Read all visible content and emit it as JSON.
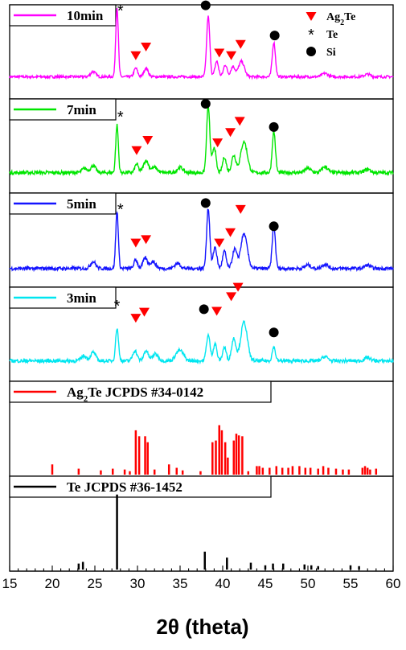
{
  "chart_data": {
    "type": "line",
    "xlabel": "2θ (theta)",
    "xlim": [
      15,
      60
    ],
    "x_ticks": [
      15,
      20,
      25,
      30,
      35,
      40,
      45,
      50,
      55,
      60
    ],
    "phase_legend": [
      {
        "symbol": "triangle",
        "label": "Ag",
        "sub": "2",
        "suffix": "Te",
        "color": "#ff0000"
      },
      {
        "symbol": "star",
        "label": "Te",
        "sub": "",
        "suffix": "",
        "color": "#000000"
      },
      {
        "symbol": "circle",
        "label": "Si",
        "sub": "",
        "suffix": "",
        "color": "#000000"
      }
    ],
    "panels": [
      {
        "kind": "pattern",
        "name": "10min",
        "color": "#ff00ff",
        "baseline": 0.22,
        "noise": 0.015,
        "peaks": [
          [
            24.8,
            0.06,
            0.35
          ],
          [
            27.6,
            0.8,
            0.18
          ],
          [
            29.8,
            0.1,
            0.25
          ],
          [
            31.0,
            0.1,
            0.3
          ],
          [
            38.3,
            0.7,
            0.22
          ],
          [
            39.3,
            0.18,
            0.25
          ],
          [
            40.3,
            0.14,
            0.25
          ],
          [
            41.2,
            0.12,
            0.3
          ],
          [
            42.2,
            0.18,
            0.4
          ],
          [
            46.0,
            0.4,
            0.22
          ],
          [
            52.0,
            0.04,
            0.4
          ],
          [
            57.0,
            0.03,
            0.4
          ]
        ],
        "markers": [
          {
            "type": "star",
            "x": 28.0,
            "y": 1.0
          },
          {
            "type": "triangle",
            "x": 29.8,
            "y": 0.47
          },
          {
            "type": "triangle",
            "x": 31.0,
            "y": 0.57
          },
          {
            "type": "circle",
            "x": 38.0,
            "y": 1.05
          },
          {
            "type": "triangle",
            "x": 39.6,
            "y": 0.5
          },
          {
            "type": "triangle",
            "x": 41.0,
            "y": 0.47
          },
          {
            "type": "triangle",
            "x": 42.1,
            "y": 0.6
          },
          {
            "type": "circle",
            "x": 46.1,
            "y": 0.7
          }
        ]
      },
      {
        "kind": "pattern",
        "name": "7min",
        "color": "#00e600",
        "baseline": 0.2,
        "noise": 0.02,
        "peaks": [
          [
            23.8,
            0.05,
            0.35
          ],
          [
            24.8,
            0.08,
            0.35
          ],
          [
            27.6,
            0.55,
            0.18
          ],
          [
            29.9,
            0.1,
            0.25
          ],
          [
            31.0,
            0.14,
            0.35
          ],
          [
            32.0,
            0.06,
            0.4
          ],
          [
            35.0,
            0.06,
            0.4
          ],
          [
            38.3,
            0.78,
            0.22
          ],
          [
            39.0,
            0.3,
            0.25
          ],
          [
            40.2,
            0.18,
            0.25
          ],
          [
            41.3,
            0.2,
            0.3
          ],
          [
            42.5,
            0.36,
            0.45
          ],
          [
            46.0,
            0.48,
            0.22
          ],
          [
            50.0,
            0.05,
            0.4
          ],
          [
            52.0,
            0.07,
            0.4
          ],
          [
            57.0,
            0.04,
            0.4
          ]
        ],
        "markers": [
          {
            "type": "star",
            "x": 28.0,
            "y": 0.86
          },
          {
            "type": "triangle",
            "x": 29.9,
            "y": 0.46
          },
          {
            "type": "triangle",
            "x": 31.2,
            "y": 0.58
          },
          {
            "type": "circle",
            "x": 38.0,
            "y": 1.0
          },
          {
            "type": "triangle",
            "x": 39.4,
            "y": 0.55
          },
          {
            "type": "triangle",
            "x": 40.9,
            "y": 0.67
          },
          {
            "type": "triangle",
            "x": 42.0,
            "y": 0.8
          },
          {
            "type": "circle",
            "x": 46.0,
            "y": 0.73
          }
        ]
      },
      {
        "kind": "pattern",
        "name": "5min",
        "color": "#1414ff",
        "baseline": 0.18,
        "noise": 0.02,
        "peaks": [
          [
            24.8,
            0.08,
            0.35
          ],
          [
            27.6,
            0.66,
            0.18
          ],
          [
            29.8,
            0.1,
            0.25
          ],
          [
            30.9,
            0.12,
            0.3
          ],
          [
            31.8,
            0.08,
            0.4
          ],
          [
            34.7,
            0.06,
            0.4
          ],
          [
            38.3,
            0.7,
            0.22
          ],
          [
            39.1,
            0.25,
            0.25
          ],
          [
            40.2,
            0.2,
            0.25
          ],
          [
            41.4,
            0.22,
            0.3
          ],
          [
            42.5,
            0.4,
            0.45
          ],
          [
            46.0,
            0.5,
            0.22
          ],
          [
            50.0,
            0.04,
            0.4
          ],
          [
            52.0,
            0.05,
            0.4
          ],
          [
            57.0,
            0.04,
            0.4
          ]
        ],
        "markers": [
          {
            "type": "star",
            "x": 28.0,
            "y": 0.88
          },
          {
            "type": "triangle",
            "x": 29.8,
            "y": 0.48
          },
          {
            "type": "triangle",
            "x": 31.0,
            "y": 0.52
          },
          {
            "type": "circle",
            "x": 38.0,
            "y": 0.94
          },
          {
            "type": "triangle",
            "x": 39.6,
            "y": 0.48
          },
          {
            "type": "triangle",
            "x": 40.9,
            "y": 0.6
          },
          {
            "type": "triangle",
            "x": 42.1,
            "y": 0.87
          },
          {
            "type": "circle",
            "x": 46.0,
            "y": 0.67
          }
        ]
      },
      {
        "kind": "pattern",
        "name": "3min",
        "color": "#00e6f0",
        "baseline": 0.2,
        "noise": 0.02,
        "peaks": [
          [
            23.7,
            0.06,
            0.35
          ],
          [
            24.8,
            0.1,
            0.35
          ],
          [
            27.6,
            0.38,
            0.2
          ],
          [
            29.7,
            0.12,
            0.3
          ],
          [
            31.0,
            0.12,
            0.3
          ],
          [
            32.1,
            0.08,
            0.4
          ],
          [
            34.7,
            0.08,
            0.4
          ],
          [
            35.2,
            0.08,
            0.4
          ],
          [
            38.3,
            0.3,
            0.25
          ],
          [
            39.1,
            0.2,
            0.25
          ],
          [
            40.2,
            0.16,
            0.25
          ],
          [
            41.3,
            0.26,
            0.3
          ],
          [
            42.5,
            0.45,
            0.45
          ],
          [
            46.0,
            0.16,
            0.22
          ],
          [
            52.0,
            0.05,
            0.4
          ],
          [
            57.0,
            0.04,
            0.4
          ]
        ],
        "markers": [
          {
            "type": "star",
            "x": 27.6,
            "y": 0.85
          },
          {
            "type": "triangle",
            "x": 29.8,
            "y": 0.7
          },
          {
            "type": "triangle",
            "x": 30.8,
            "y": 0.77
          },
          {
            "type": "circle",
            "x": 37.8,
            "y": 0.8
          },
          {
            "type": "triangle",
            "x": 39.3,
            "y": 0.78
          },
          {
            "type": "triangle",
            "x": 41.0,
            "y": 0.95
          },
          {
            "type": "triangle",
            "x": 41.8,
            "y": 1.06
          },
          {
            "type": "circle",
            "x": 46.0,
            "y": 0.53
          }
        ]
      },
      {
        "kind": "reference",
        "name": "Ag",
        "name_sub": "2",
        "name_suffix": "Te JCPDS #34-0142",
        "color": "#ff0000",
        "lines": [
          [
            20.0,
            0.12
          ],
          [
            23.1,
            0.07
          ],
          [
            25.7,
            0.05
          ],
          [
            27.1,
            0.07
          ],
          [
            28.5,
            0.06
          ],
          [
            29.1,
            0.04
          ],
          [
            29.8,
            0.52
          ],
          [
            30.2,
            0.45
          ],
          [
            30.9,
            0.45
          ],
          [
            31.2,
            0.38
          ],
          [
            32.0,
            0.06
          ],
          [
            33.7,
            0.12
          ],
          [
            34.6,
            0.08
          ],
          [
            35.3,
            0.05
          ],
          [
            37.4,
            0.04
          ],
          [
            38.8,
            0.38
          ],
          [
            39.2,
            0.4
          ],
          [
            39.6,
            0.58
          ],
          [
            39.9,
            0.52
          ],
          [
            40.3,
            0.38
          ],
          [
            40.6,
            0.2
          ],
          [
            41.3,
            0.4
          ],
          [
            41.6,
            0.48
          ],
          [
            41.9,
            0.46
          ],
          [
            42.3,
            0.45
          ],
          [
            43.0,
            0.04
          ],
          [
            44.0,
            0.1
          ],
          [
            44.3,
            0.1
          ],
          [
            44.7,
            0.08
          ],
          [
            45.5,
            0.08
          ],
          [
            46.3,
            0.1
          ],
          [
            47.0,
            0.08
          ],
          [
            47.7,
            0.08
          ],
          [
            48.2,
            0.1
          ],
          [
            49.0,
            0.1
          ],
          [
            49.7,
            0.08
          ],
          [
            50.3,
            0.08
          ],
          [
            51.2,
            0.07
          ],
          [
            51.8,
            0.1
          ],
          [
            52.4,
            0.08
          ],
          [
            53.3,
            0.07
          ],
          [
            54.1,
            0.06
          ],
          [
            54.8,
            0.06
          ],
          [
            56.4,
            0.08
          ],
          [
            56.7,
            0.1
          ],
          [
            57.0,
            0.08
          ],
          [
            57.3,
            0.06
          ],
          [
            58.0,
            0.07
          ]
        ]
      },
      {
        "kind": "reference",
        "name": "Te JCPDS #36-1452",
        "name_sub": "",
        "name_suffix": "",
        "color": "#000000",
        "lines": [
          [
            23.1,
            0.07
          ],
          [
            23.6,
            0.09
          ],
          [
            27.6,
            0.88
          ],
          [
            37.9,
            0.21
          ],
          [
            40.5,
            0.14
          ],
          [
            43.3,
            0.08
          ],
          [
            45.0,
            0.05
          ],
          [
            45.9,
            0.07
          ],
          [
            47.1,
            0.07
          ],
          [
            49.6,
            0.06
          ],
          [
            50.4,
            0.05
          ],
          [
            51.2,
            0.04
          ],
          [
            55.0,
            0.05
          ],
          [
            56.0,
            0.04
          ]
        ]
      }
    ]
  }
}
